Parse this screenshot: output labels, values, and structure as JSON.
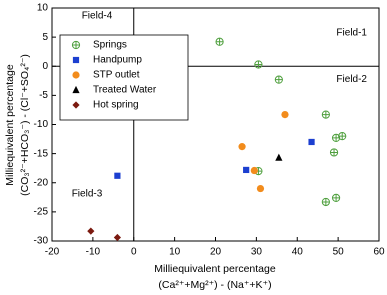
{
  "chart_data": {
    "type": "scatter",
    "x_label": [
      "Milliequivalent percentage",
      "(Ca²⁺+Mg²⁺) - (Na⁺+K⁺)"
    ],
    "y_label": [
      "Milliequivalent percentage",
      "(CO₃²⁻+HCO₃⁻) - (Cl⁻+SO₄²⁻)"
    ],
    "fields": [
      "Field-4",
      "Field-1",
      "Field-2",
      "Field-3"
    ],
    "xlim": [
      -20,
      60
    ],
    "xticks": [
      -20,
      -10,
      0,
      10,
      20,
      30,
      40,
      50,
      60
    ],
    "ylim": [
      -30,
      10
    ],
    "yticks": [
      -30,
      -25,
      -20,
      -15,
      -10,
      -5,
      0,
      5,
      10
    ],
    "legend": "upper left",
    "series": [
      {
        "name": "Springs",
        "color": "#4e9f3d",
        "marker": "circle-plus",
        "x": [
          21,
          30.5,
          35.5,
          47,
          49.5,
          51,
          49,
          30.5,
          47,
          49.5
        ],
        "values": [
          4.2,
          0.3,
          -2.3,
          -8.3,
          -12.3,
          -12,
          -14.8,
          -18,
          -23.3,
          -22.6
        ]
      },
      {
        "name": "Handpump",
        "color": "#1c3fd0",
        "marker": "square",
        "x": [
          -4,
          27.5,
          43.5
        ],
        "values": [
          -18.8,
          -17.8,
          -13
        ]
      },
      {
        "name": "STP outlet",
        "color": "#f28c1c",
        "marker": "circle",
        "x": [
          26.5,
          37,
          29.5,
          31
        ],
        "values": [
          -13.8,
          -8.3,
          -17.9,
          -21
        ]
      },
      {
        "name": "Treated Water",
        "color": "#000000",
        "marker": "triangle",
        "x": [
          35.5
        ],
        "values": [
          -15.7
        ]
      },
      {
        "name": "Hot spring",
        "color": "#7b1a10",
        "marker": "diamond",
        "x": [
          -10.5,
          -4
        ],
        "values": [
          -28.3,
          -29.4
        ]
      }
    ]
  }
}
